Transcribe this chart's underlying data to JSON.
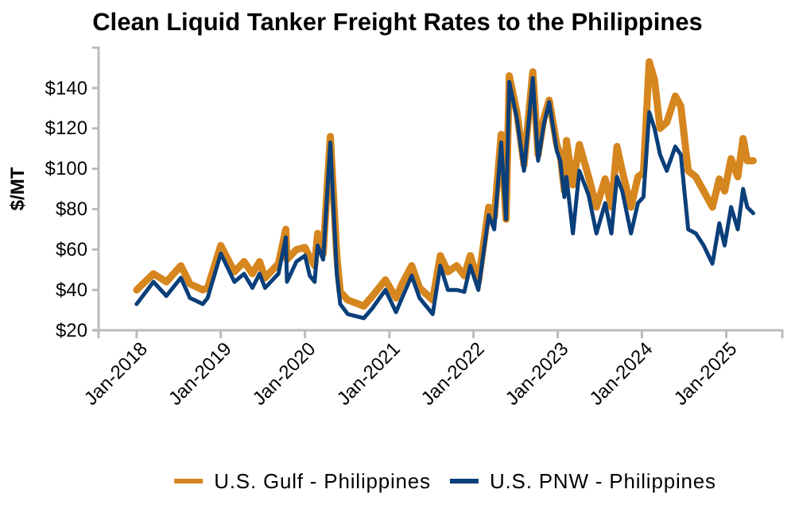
{
  "chart_data": {
    "type": "line",
    "title": "Clean Liquid Tanker Freight Rates to the Philippines",
    "ylabel": "$/MT",
    "x": [
      "2018-01-01",
      "2018-03-15",
      "2018-05-10",
      "2018-07-12",
      "2018-08-20",
      "2018-10-15",
      "2018-11-05",
      "2019-01-01",
      "2019-03-01",
      "2019-04-12",
      "2019-05-18",
      "2019-06-18",
      "2019-07-12",
      "2019-09-08",
      "2019-10-10",
      "2019-10-15",
      "2019-11-25",
      "2020-01-01",
      "2020-01-22",
      "2020-02-12",
      "2020-02-25",
      "2020-03-20",
      "2020-04-20",
      "2020-05-18",
      "2020-06-02",
      "2020-07-05",
      "2020-09-12",
      "2020-10-20",
      "2020-12-15",
      "2021-01-30",
      "2021-02-25",
      "2021-04-08",
      "2021-05-12",
      "2021-07-08",
      "2021-08-10",
      "2021-09-12",
      "2021-10-20",
      "2021-11-22",
      "2021-12-18",
      "2022-01-22",
      "2022-03-08",
      "2022-04-01",
      "2022-05-01",
      "2022-05-22",
      "2022-06-05",
      "2022-07-08",
      "2022-08-08",
      "2022-09-15",
      "2022-10-08",
      "2022-11-02",
      "2022-11-25",
      "2022-12-28",
      "2023-01-12",
      "2023-01-30",
      "2023-02-08",
      "2023-03-08",
      "2023-04-05",
      "2023-05-15",
      "2023-06-18",
      "2023-07-26",
      "2023-08-22",
      "2023-09-15",
      "2023-10-08",
      "2023-11-15",
      "2023-12-15",
      "2024-01-08",
      "2024-02-02",
      "2024-02-25",
      "2024-03-20",
      "2024-04-18",
      "2024-05-25",
      "2024-06-18",
      "2024-07-20",
      "2024-08-22",
      "2024-09-25",
      "2024-11-02",
      "2024-12-02",
      "2024-12-25",
      "2025-01-22",
      "2025-02-20",
      "2025-03-15",
      "2025-04-02",
      "2025-04-28"
    ],
    "series": [
      {
        "name": "U.S. Gulf - Philippines",
        "color": "#d6861e",
        "values": [
          40,
          48,
          44,
          52,
          43,
          40,
          41,
          62,
          49,
          54,
          48,
          54,
          46,
          53,
          70,
          55,
          60,
          61,
          56,
          52,
          68,
          58,
          116,
          57,
          39,
          35,
          32,
          37,
          45,
          36,
          43,
          52,
          41,
          35,
          57,
          49,
          52,
          47,
          57,
          44,
          81,
          76,
          117,
          75,
          146,
          128,
          102,
          148,
          107,
          125,
          134,
          112,
          107,
          89,
          114,
          92,
          112,
          96,
          81,
          95,
          81,
          111,
          99,
          81,
          96,
          98,
          153,
          144,
          120,
          123,
          136,
          131,
          99,
          96,
          89,
          81,
          95,
          89,
          105,
          96,
          115,
          104,
          104
        ]
      },
      {
        "name": "U.S. PNW - Philippines",
        "color": "#0a3f7a",
        "values": [
          33,
          44,
          37,
          46,
          36,
          33,
          36,
          58,
          44,
          48,
          41,
          48,
          41,
          48,
          66,
          44,
          54,
          57,
          47,
          44,
          62,
          55,
          113,
          48,
          33,
          28,
          26,
          31,
          40,
          29,
          36,
          47,
          36,
          28,
          52,
          40,
          40,
          39,
          52,
          40,
          77,
          70,
          113,
          75,
          143,
          125,
          99,
          145,
          104,
          122,
          133,
          109,
          104,
          86,
          96,
          68,
          99,
          87,
          68,
          83,
          68,
          96,
          89,
          68,
          83,
          86,
          128,
          120,
          107,
          99,
          111,
          107,
          70,
          68,
          62,
          53,
          73,
          62,
          81,
          70,
          90,
          81,
          78
        ]
      }
    ],
    "xlim": [
      "2017-07-20",
      "2025-09-01"
    ],
    "xticks": [
      {
        "value": "2018-01-01",
        "label": "Jan-2018"
      },
      {
        "value": "2019-01-01",
        "label": "Jan-2019"
      },
      {
        "value": "2020-01-01",
        "label": "Jan-2020"
      },
      {
        "value": "2021-01-01",
        "label": "Jan-2021"
      },
      {
        "value": "2022-01-01",
        "label": "Jan-2022"
      },
      {
        "value": "2023-01-01",
        "label": "Jan-2023"
      },
      {
        "value": "2024-01-01",
        "label": "Jan-2024"
      },
      {
        "value": "2025-01-01",
        "label": "Jan-2025"
      }
    ],
    "ylim": [
      20,
      160
    ],
    "yticks": [
      {
        "value": 20,
        "label": "$20"
      },
      {
        "value": 40,
        "label": "$40"
      },
      {
        "value": 60,
        "label": "$60"
      },
      {
        "value": 80,
        "label": "$80"
      },
      {
        "value": 100,
        "label": "$100"
      },
      {
        "value": 120,
        "label": "$120"
      },
      {
        "value": 140,
        "label": "$140"
      }
    ],
    "legend": "bottom",
    "grid": false,
    "marker": "none",
    "line_style": "solid"
  }
}
